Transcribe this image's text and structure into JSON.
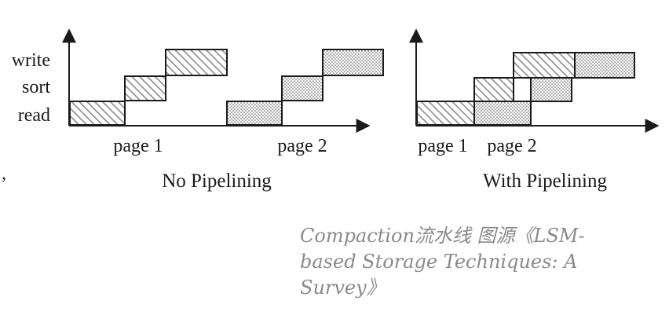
{
  "stray_mark": ",",
  "diagrams": [
    {
      "y_labels": [
        "write",
        "sort",
        "read"
      ],
      "page_labels": [
        "page 1",
        "page 2"
      ],
      "title": "No Pipelining"
    },
    {
      "page_labels": [
        "page 1",
        "page 2"
      ],
      "title": "With Pipelining"
    }
  ],
  "caption": {
    "line1": "Compaction流水线 图源《LSM-",
    "line2": "based Storage Techniques: A",
    "line3": "Survey》"
  },
  "colors": {
    "ink": "#1a1a1a",
    "caption": "#8a8a8a",
    "page1_fill": "hatch",
    "page2_fill": "dots"
  }
}
